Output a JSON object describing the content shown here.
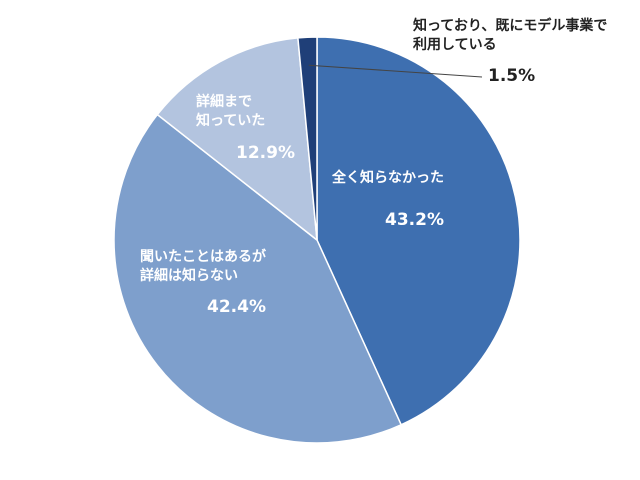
{
  "chart_data": {
    "type": "pie",
    "start_angle_deg": 0,
    "direction": "clockwise",
    "slices": [
      {
        "label": "全く知らなかった",
        "value": 43.2,
        "value_label": "43.2%",
        "color": "#3e6fb0"
      },
      {
        "label_line1": "聞いたことはあるが",
        "label_line2": "詳細は知らない",
        "value": 42.4,
        "value_label": "42.4%",
        "color": "#7e9fcc"
      },
      {
        "label_line1": "詳細まで",
        "label_line2": "知っていた",
        "value": 12.9,
        "value_label": "12.9%",
        "color": "#b3c4df"
      },
      {
        "label_line1": "知っており、既にモデル事業で",
        "label_line2": "利用している",
        "value": 1.5,
        "value_label": "1.5%",
        "color": "#1f3f78"
      }
    ]
  }
}
